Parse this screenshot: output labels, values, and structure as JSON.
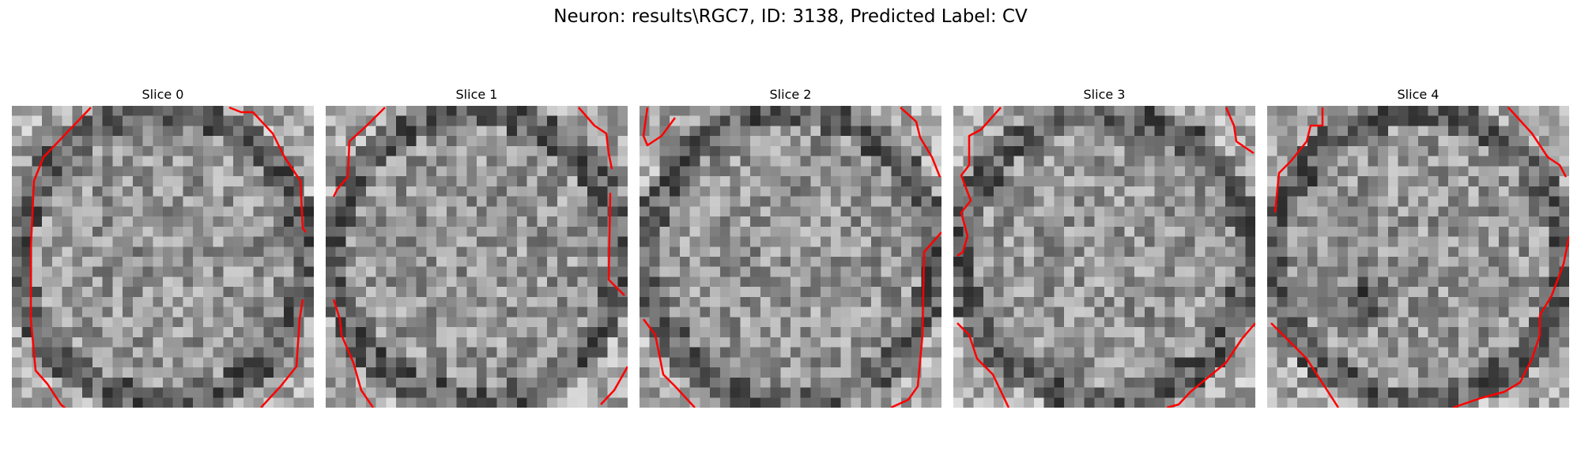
{
  "figure": {
    "title": "Neuron: results\\RGC7, ID: 3138, Predicted Label: CV"
  },
  "panels": [
    {
      "title": "Slice 0",
      "seed": 11,
      "dark_blob": null
    },
    {
      "title": "Slice 1",
      "seed": 23,
      "dark_blob": null
    },
    {
      "title": "Slice 2",
      "seed": 37,
      "dark_blob": null
    },
    {
      "title": "Slice 3",
      "seed": 41,
      "dark_blob": null
    },
    {
      "title": "Slice 4",
      "seed": 53,
      "dark_blob": {
        "col": 9,
        "row": 19,
        "radius": 3.2
      }
    }
  ],
  "image_grid": {
    "cols": 30,
    "rows": 30
  },
  "colors": {
    "contour": "#ff0000",
    "background": "#ffffff"
  }
}
